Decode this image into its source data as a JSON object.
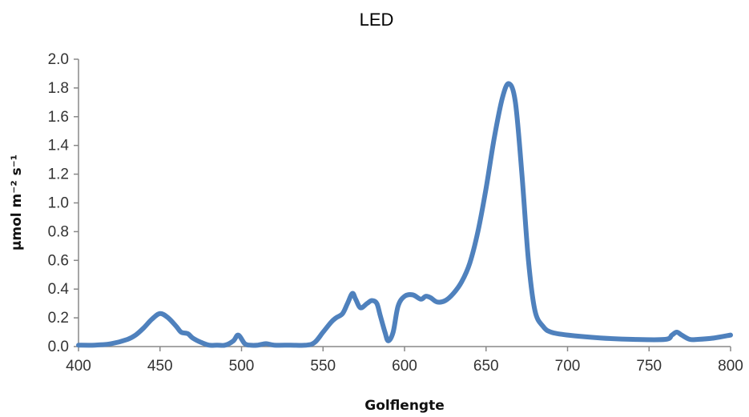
{
  "chart_data": {
    "type": "line",
    "title": "LED",
    "xlabel": "Golflengte",
    "ylabel": "µmol m⁻² s⁻¹",
    "xlim": [
      400,
      800
    ],
    "ylim": [
      0,
      2.0
    ],
    "xticks": [
      400,
      450,
      500,
      550,
      600,
      650,
      700,
      750,
      800
    ],
    "xtick_labels": [
      "400",
      "450",
      "500",
      "550",
      "600",
      "650",
      "700",
      "750",
      "800"
    ],
    "yticks": [
      0,
      0.2,
      0.4,
      0.6,
      0.8,
      1.0,
      1.2,
      1.4,
      1.6,
      1.8,
      2.0
    ],
    "ytick_labels": [
      "0.0",
      "0.2",
      "0.4",
      "0.6",
      "0.8",
      "1.0",
      "1.2",
      "1.4",
      "1.6",
      "1.8",
      "2.0"
    ],
    "grid": false,
    "legend": "none",
    "series": [
      {
        "color": "#4f81bd",
        "x": [
          400,
          410,
          420,
          430,
          435,
          440,
          445,
          450,
          455,
          460,
          463,
          467,
          470,
          475,
          480,
          485,
          490,
          495,
          498,
          502,
          505,
          510,
          515,
          520,
          530,
          540,
          545,
          550,
          555,
          558,
          562,
          565,
          568,
          570,
          573,
          577,
          580,
          583,
          585,
          588,
          590,
          593,
          596,
          600,
          605,
          610,
          613,
          616,
          620,
          625,
          630,
          635,
          640,
          645,
          650,
          655,
          660,
          664,
          668,
          672,
          676,
          680,
          685,
          690,
          700,
          720,
          740,
          760,
          764,
          767,
          770,
          775,
          780,
          790,
          800
        ],
        "y": [
          0.01,
          0.01,
          0.02,
          0.05,
          0.08,
          0.13,
          0.19,
          0.23,
          0.2,
          0.14,
          0.1,
          0.09,
          0.06,
          0.03,
          0.01,
          0.01,
          0.01,
          0.04,
          0.08,
          0.02,
          0.01,
          0.01,
          0.02,
          0.01,
          0.01,
          0.01,
          0.03,
          0.1,
          0.17,
          0.2,
          0.23,
          0.3,
          0.37,
          0.33,
          0.27,
          0.3,
          0.32,
          0.3,
          0.22,
          0.1,
          0.04,
          0.1,
          0.28,
          0.35,
          0.36,
          0.33,
          0.35,
          0.34,
          0.31,
          0.32,
          0.37,
          0.45,
          0.58,
          0.8,
          1.1,
          1.45,
          1.73,
          1.83,
          1.7,
          1.2,
          0.6,
          0.25,
          0.14,
          0.1,
          0.08,
          0.06,
          0.05,
          0.05,
          0.08,
          0.1,
          0.08,
          0.05,
          0.05,
          0.06,
          0.08
        ]
      }
    ]
  }
}
